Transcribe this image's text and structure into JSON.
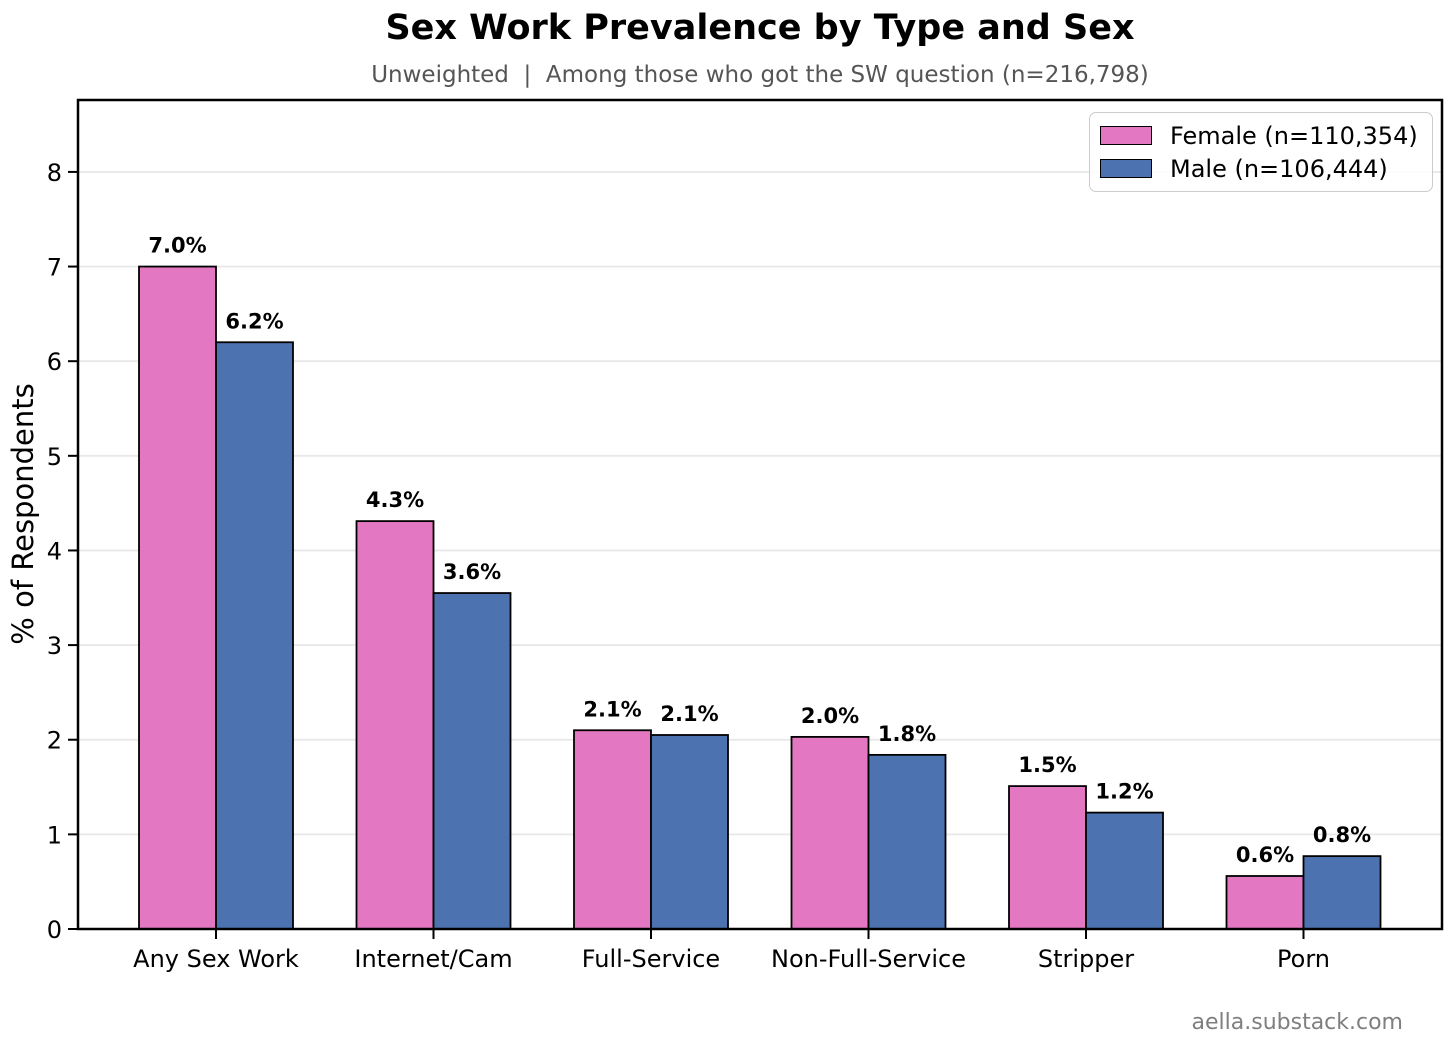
{
  "title": "Sex Work Prevalence by Type and Sex",
  "subtitle": "Unweighted  |  Among those who got the SW question (n=216,798)",
  "footer": "aella.substack.com",
  "chart_data": {
    "type": "bar",
    "title": "Sex Work Prevalence by Type and Sex",
    "subtitle": "Unweighted  |  Among those who got the SW question (n=216,798)",
    "xlabel": "",
    "ylabel": "% of Respondents",
    "ylim": [
      0,
      8.76
    ],
    "yticks": [
      0,
      1,
      2,
      3,
      4,
      5,
      6,
      7,
      8
    ],
    "grid": "horizontal",
    "grid_color": "#e8e8e8",
    "legend_position": "upper right",
    "bar_edge_color": "#000000",
    "categories": [
      "Any Sex Work",
      "Internet/Cam",
      "Full-Service",
      "Non-Full-Service",
      "Stripper",
      "Porn"
    ],
    "series": [
      {
        "name": "Female (n=110,354)",
        "key": "female",
        "color": "#e377c2",
        "values": [
          7.0,
          4.31,
          2.1,
          2.03,
          1.51,
          0.56
        ],
        "labels": [
          "7.0%",
          "4.3%",
          "2.1%",
          "2.0%",
          "1.5%",
          "0.6%"
        ]
      },
      {
        "name": "Male (n=106,444)",
        "key": "male",
        "color": "#4c72b0",
        "values": [
          6.2,
          3.55,
          2.05,
          1.84,
          1.23,
          0.77
        ],
        "labels": [
          "6.2%",
          "3.6%",
          "2.1%",
          "1.8%",
          "1.2%",
          "0.8%"
        ]
      }
    ]
  }
}
